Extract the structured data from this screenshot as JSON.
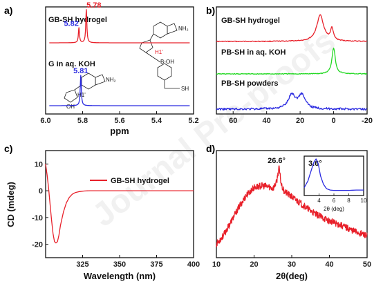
{
  "colors": {
    "red": "#e8202a",
    "blue": "#2a2ae0",
    "green": "#22d822",
    "black": "#111111"
  },
  "watermark": {
    "text": "Journal Pre-proofs"
  },
  "chart_data": [
    {
      "panel": "a)",
      "type": "line",
      "xlabel": "ppm",
      "xlim": [
        6.0,
        5.2
      ],
      "xticks": [
        "6.0",
        "5.8",
        "5.6",
        "5.4",
        "5.2"
      ],
      "series": [
        {
          "name": "GB-SH hydrogel",
          "color": "#e8202a",
          "peaks": [
            {
              "x": 5.82,
              "label": "5.82",
              "label_color": "#2a2ae0",
              "height": 0.45
            },
            {
              "x": 5.78,
              "label": "5.78",
              "label_color": "#e8202a",
              "height": 1.0
            }
          ]
        },
        {
          "name": "G in aq. KOH",
          "color": "#2a2ae0",
          "peaks": [
            {
              "x": 5.81,
              "label": "5.81",
              "label_color": "#2a2ae0",
              "height": 1.0
            }
          ]
        }
      ],
      "structure_labels": [
        "H1'",
        "H1'",
        "B-OH",
        "OH",
        "SH",
        "NH₂"
      ]
    },
    {
      "panel": "b)",
      "type": "line",
      "xlim": [
        70,
        -20
      ],
      "xticks": [
        "60",
        "40",
        "20",
        "0",
        "-20"
      ],
      "series": [
        {
          "name": "GB-SH hydrogel",
          "color": "#e8202a",
          "peaks": [
            {
              "x": 8,
              "height": 1.0,
              "width": 2.5
            },
            {
              "x": 1,
              "height": 0.45,
              "width": 1.0
            }
          ]
        },
        {
          "name": "PB-SH in aq. KOH",
          "color": "#22d822",
          "peaks": [
            {
              "x": 0,
              "height": 1.0,
              "width": 1.2
            }
          ]
        },
        {
          "name": "PB-SH powders",
          "color": "#2a2ae0",
          "peaks": [
            {
              "x": 25,
              "height": 0.8,
              "width": 2.5
            },
            {
              "x": 19,
              "height": 0.8,
              "width": 2.5
            }
          ]
        }
      ]
    },
    {
      "panel": "c)",
      "type": "line",
      "xlabel": "Wavelength (nm)",
      "ylabel": "CD (mdeg)",
      "xlim": [
        300,
        400
      ],
      "ylim": [
        -25,
        15
      ],
      "xticks": [
        "325",
        "350",
        "375",
        "400"
      ],
      "yticks": [
        "10",
        "0",
        "-10",
        "-20"
      ],
      "series": [
        {
          "name": "GB-SH hydrogel",
          "color": "#e8202a",
          "x": [
            300,
            301,
            302,
            303,
            304,
            305,
            306,
            307,
            308,
            309,
            310,
            312,
            314,
            316,
            318,
            320,
            323,
            326,
            330,
            335,
            340,
            350,
            360,
            375,
            400
          ],
          "y": [
            10,
            6,
            1,
            -5,
            -11,
            -16,
            -19,
            -19.5,
            -19,
            -16.5,
            -13,
            -8,
            -4.5,
            -2.5,
            -1.3,
            -0.7,
            -0.3,
            -0.1,
            0,
            0,
            0,
            0,
            0,
            0,
            0
          ]
        }
      ]
    },
    {
      "panel": "d)",
      "type": "line",
      "xlabel": "2θ(deg)",
      "xlim": [
        10,
        50
      ],
      "xticks": [
        "10",
        "20",
        "30",
        "40",
        "50"
      ],
      "annotation": "26.6°",
      "series": [
        {
          "name": "",
          "color": "#e8202a",
          "x": [
            10,
            12,
            14,
            16,
            18,
            20,
            22,
            24,
            25,
            26,
            26.6,
            27.2,
            28,
            30,
            32,
            34,
            36,
            38,
            40,
            42,
            44,
            46,
            48,
            50
          ],
          "y": [
            0.05,
            0.15,
            0.3,
            0.45,
            0.58,
            0.66,
            0.68,
            0.67,
            0.65,
            0.72,
            0.88,
            0.7,
            0.62,
            0.56,
            0.5,
            0.44,
            0.38,
            0.34,
            0.3,
            0.27,
            0.24,
            0.2,
            0.17,
            0.14
          ]
        }
      ],
      "inset": {
        "xlabel": "2θ (deg)",
        "xlim": [
          2,
          10
        ],
        "xticks": [
          "4",
          "6",
          "8",
          "10"
        ],
        "annotation": "3.6°",
        "series": [
          {
            "name": "",
            "color": "#2a2ae0",
            "x": [
              2,
              2.5,
              3,
              3.3,
              3.6,
              3.9,
              4.2,
              4.6,
              5,
              5.5,
              6,
              7,
              8,
              9,
              10
            ],
            "y": [
              0.15,
              0.35,
              0.7,
              0.9,
              1.0,
              0.85,
              0.5,
              0.25,
              0.12,
              0.08,
              0.07,
              0.07,
              0.07,
              0.08,
              0.08
            ]
          }
        ]
      }
    }
  ]
}
